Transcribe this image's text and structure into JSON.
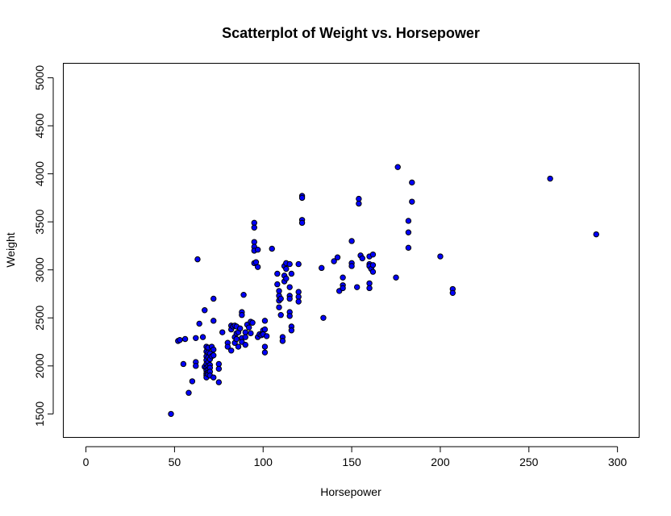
{
  "chart_data": {
    "type": "scatter",
    "title": "Scatterplot of Weight vs. Horsepower",
    "xlabel": "Horsepower",
    "ylabel": "Weight",
    "xlim": [
      -13,
      312
    ],
    "ylim": [
      1260,
      5155
    ],
    "xticks": [
      0,
      50,
      100,
      150,
      200,
      250,
      300
    ],
    "yticks": [
      1500,
      2000,
      2500,
      3000,
      3500,
      4000,
      4500,
      5000
    ],
    "grid": false,
    "legend": "none",
    "colors": {
      "point_fill": "#0000ff",
      "point_stroke": "#000000",
      "axis": "#000000"
    },
    "series": [
      {
        "points": [
          [
            48,
            1500
          ],
          [
            52,
            2260
          ],
          [
            53,
            2270
          ],
          [
            55,
            2020
          ],
          [
            56,
            2280
          ],
          [
            58,
            1720
          ],
          [
            60,
            1840
          ],
          [
            62,
            2040
          ],
          [
            62,
            2000
          ],
          [
            62,
            2290
          ],
          [
            63,
            3110
          ],
          [
            64,
            2440
          ],
          [
            66,
            2300
          ],
          [
            67,
            2580
          ],
          [
            67,
            1990
          ],
          [
            68,
            2200
          ],
          [
            68,
            2150
          ],
          [
            68,
            2100
          ],
          [
            68,
            2060
          ],
          [
            68,
            2020
          ],
          [
            68,
            1980
          ],
          [
            68,
            1950
          ],
          [
            68,
            1920
          ],
          [
            68,
            1900
          ],
          [
            68,
            1880
          ],
          [
            69,
            2190
          ],
          [
            69,
            2140
          ],
          [
            69,
            2090
          ],
          [
            69,
            2040
          ],
          [
            69,
            2000
          ],
          [
            69,
            1960
          ],
          [
            69,
            1930
          ],
          [
            69,
            1910
          ],
          [
            70,
            2130
          ],
          [
            70,
            2070
          ],
          [
            70,
            2010
          ],
          [
            70,
            1980
          ],
          [
            70,
            1940
          ],
          [
            70,
            1900
          ],
          [
            71,
            2200
          ],
          [
            71,
            2100
          ],
          [
            72,
            2700
          ],
          [
            72,
            2470
          ],
          [
            72,
            2170
          ],
          [
            72,
            2110
          ],
          [
            72,
            1880
          ],
          [
            75,
            2020
          ],
          [
            75,
            1970
          ],
          [
            75,
            1830
          ],
          [
            77,
            2350
          ],
          [
            80,
            2240
          ],
          [
            80,
            2200
          ],
          [
            82,
            2420
          ],
          [
            82,
            2380
          ],
          [
            82,
            2160
          ],
          [
            83,
            2410
          ],
          [
            84,
            2300
          ],
          [
            84,
            2240
          ],
          [
            84,
            2420
          ],
          [
            85,
            2410
          ],
          [
            85,
            2340
          ],
          [
            85,
            2280
          ],
          [
            86,
            2200
          ],
          [
            86,
            2350
          ],
          [
            87,
            2390
          ],
          [
            88,
            2560
          ],
          [
            88,
            2530
          ],
          [
            88,
            2290
          ],
          [
            88,
            2250
          ],
          [
            89,
            2740
          ],
          [
            90,
            2350
          ],
          [
            90,
            2300
          ],
          [
            90,
            2220
          ],
          [
            91,
            2430
          ],
          [
            92,
            2400
          ],
          [
            93,
            2460
          ],
          [
            93,
            2340
          ],
          [
            94,
            2450
          ],
          [
            95,
            3490
          ],
          [
            95,
            3440
          ],
          [
            95,
            3290
          ],
          [
            95,
            3240
          ],
          [
            95,
            3200
          ],
          [
            95,
            3070
          ],
          [
            96,
            3080
          ],
          [
            97,
            3030
          ],
          [
            97,
            3210
          ],
          [
            97,
            2300
          ],
          [
            98,
            2330
          ],
          [
            99,
            2320
          ],
          [
            100,
            2370
          ],
          [
            100,
            2330
          ],
          [
            101,
            2470
          ],
          [
            101,
            2380
          ],
          [
            101,
            2200
          ],
          [
            101,
            2140
          ],
          [
            102,
            2310
          ],
          [
            105,
            3220
          ],
          [
            108,
            2960
          ],
          [
            108,
            2850
          ],
          [
            109,
            2780
          ],
          [
            109,
            2730
          ],
          [
            109,
            2680
          ],
          [
            109,
            2610
          ],
          [
            110,
            2530
          ],
          [
            110,
            2700
          ],
          [
            111,
            2300
          ],
          [
            111,
            2260
          ],
          [
            112,
            3040
          ],
          [
            112,
            2940
          ],
          [
            112,
            2880
          ],
          [
            113,
            3070
          ],
          [
            113,
            3010
          ],
          [
            113,
            2910
          ],
          [
            115,
            3060
          ],
          [
            115,
            2820
          ],
          [
            115,
            2730
          ],
          [
            115,
            2700
          ],
          [
            115,
            2560
          ],
          [
            115,
            2520
          ],
          [
            116,
            2410
          ],
          [
            116,
            2370
          ],
          [
            116,
            2960
          ],
          [
            120,
            3060
          ],
          [
            120,
            2770
          ],
          [
            120,
            2720
          ],
          [
            120,
            2670
          ],
          [
            122,
            3770
          ],
          [
            122,
            3750
          ],
          [
            122,
            3520
          ],
          [
            122,
            3490
          ],
          [
            133,
            3020
          ],
          [
            134,
            2500
          ],
          [
            140,
            3090
          ],
          [
            142,
            3130
          ],
          [
            143,
            2780
          ],
          [
            145,
            2920
          ],
          [
            145,
            2840
          ],
          [
            145,
            2810
          ],
          [
            150,
            3300
          ],
          [
            150,
            3070
          ],
          [
            150,
            3040
          ],
          [
            153,
            2820
          ],
          [
            154,
            3740
          ],
          [
            154,
            3690
          ],
          [
            155,
            3150
          ],
          [
            156,
            3120
          ],
          [
            160,
            3060
          ],
          [
            160,
            3040
          ],
          [
            160,
            2860
          ],
          [
            160,
            2810
          ],
          [
            160,
            3140
          ],
          [
            161,
            3010
          ],
          [
            162,
            3160
          ],
          [
            162,
            3050
          ],
          [
            162,
            2980
          ],
          [
            175,
            2920
          ],
          [
            176,
            4070
          ],
          [
            182,
            3510
          ],
          [
            182,
            3390
          ],
          [
            182,
            3230
          ],
          [
            184,
            3910
          ],
          [
            184,
            3710
          ],
          [
            200,
            3140
          ],
          [
            207,
            2800
          ],
          [
            207,
            2760
          ],
          [
            262,
            3950
          ],
          [
            288,
            3370
          ]
        ]
      }
    ]
  }
}
